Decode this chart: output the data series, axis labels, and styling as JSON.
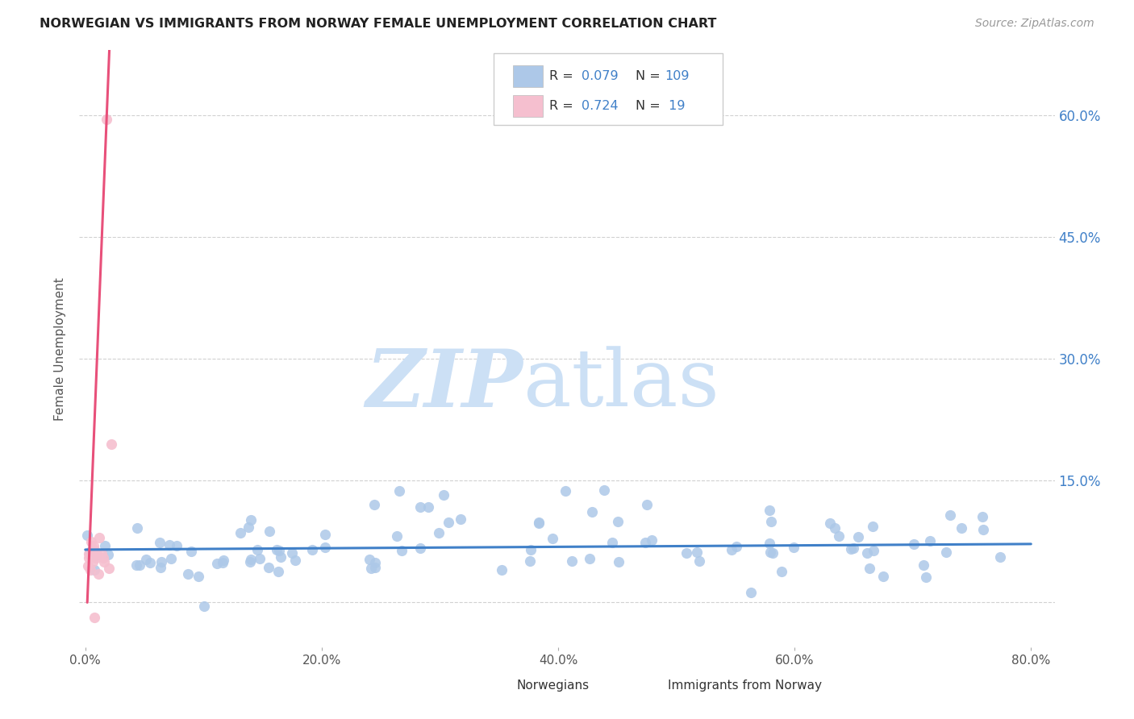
{
  "title": "NORWEGIAN VS IMMIGRANTS FROM NORWAY FEMALE UNEMPLOYMENT CORRELATION CHART",
  "source": "Source: ZipAtlas.com",
  "ylabel": "Female Unemployment",
  "xlim": [
    -0.005,
    0.82
  ],
  "ylim": [
    -0.055,
    0.68
  ],
  "yticks": [
    0.0,
    0.15,
    0.3,
    0.45,
    0.6
  ],
  "ytick_labels_right": [
    "",
    "15.0%",
    "30.0%",
    "45.0%",
    "60.0%"
  ],
  "xticks": [
    0.0,
    0.2,
    0.4,
    0.6,
    0.8
  ],
  "xtick_labels": [
    "0.0%",
    "20.0%",
    "40.0%",
    "60.0%",
    "80.0%"
  ],
  "background_color": "#ffffff",
  "plot_bg_color": "#ffffff",
  "grid_color": "#cccccc",
  "norwegian_color": "#adc8e8",
  "immigrant_color": "#f5bfcf",
  "norwegian_line_color": "#4080c8",
  "immigrant_line_color": "#e8507a",
  "watermark_zip_color": "#cce0f5",
  "watermark_atlas_color": "#cce0f5",
  "legend_box_color": "#f0f0f0",
  "legend_text_color": "#333333",
  "legend_val_color": "#4080c8",
  "title_color": "#222222",
  "source_color": "#999999",
  "ylabel_color": "#555555",
  "bottom_legend_text_color": "#333333"
}
